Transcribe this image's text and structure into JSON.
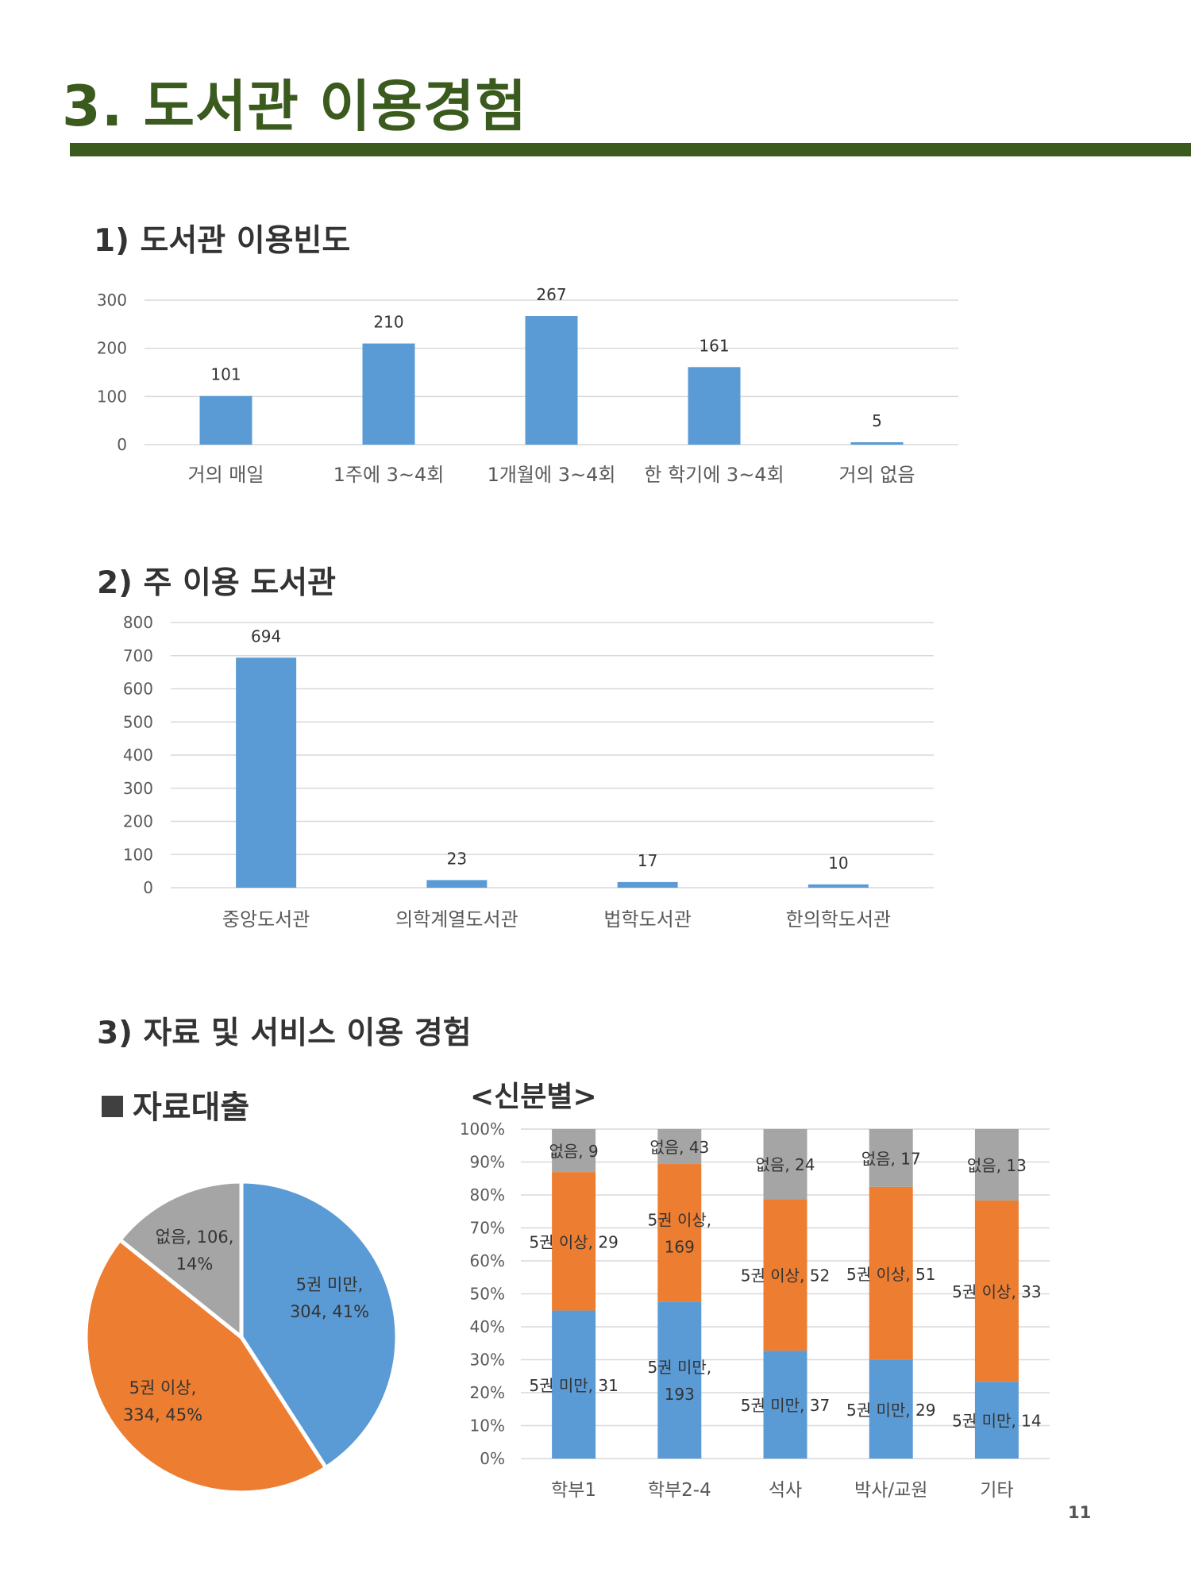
{
  "page": {
    "title": "3. 도서관 이용경험",
    "page_number": "11"
  },
  "sections": {
    "s1": "1) 도서관 이용빈도",
    "s2": "2) 주 이용 도서관",
    "s3": "3) 자료 및 서비스 이용 경험",
    "loan_heading": "자료대출",
    "by_status_heading": "<신분별>"
  },
  "colors": {
    "blue": "#5b9bd5",
    "orange": "#ed7d31",
    "gray": "#a5a5a5",
    "grid": "#d9d9d9",
    "axis_text": "#595959"
  },
  "chart_data": [
    {
      "id": "frequency",
      "type": "bar",
      "title": "1) 도서관 이용빈도",
      "categories": [
        "거의 매일",
        "1주에 3~4회",
        "1개월에 3~4회",
        "한 학기에 3~4회",
        "거의 없음"
      ],
      "values": [
        101,
        210,
        267,
        161,
        5
      ],
      "ylim": [
        0,
        300
      ],
      "yticks": [
        0,
        100,
        200,
        300
      ],
      "grid": true
    },
    {
      "id": "main_library",
      "type": "bar",
      "title": "2) 주 이용 도서관",
      "categories": [
        "중앙도서관",
        "의학계열도서관",
        "법학도서관",
        "한의학도서관"
      ],
      "values": [
        694,
        23,
        17,
        10
      ],
      "ylim": [
        0,
        800
      ],
      "yticks": [
        0,
        100,
        200,
        300,
        400,
        500,
        600,
        700,
        800
      ],
      "grid": true
    },
    {
      "id": "loan_pie",
      "type": "pie",
      "title": "자료대출",
      "slices": [
        {
          "name": "5권 미만",
          "value": 304,
          "percent": "41%",
          "label_line1": "5권 미만,",
          "label_line2": "304, 41%"
        },
        {
          "name": "5권 이상",
          "value": 334,
          "percent": "45%",
          "label_line1": "5권 이상,",
          "label_line2": "334, 45%"
        },
        {
          "name": "없음",
          "value": 106,
          "percent": "14%",
          "label_line1": "없음, 106,",
          "label_line2": "14%"
        }
      ]
    },
    {
      "id": "loan_by_status",
      "type": "bar",
      "stacked": "percent",
      "title": "<신분별>",
      "categories": [
        "학부1",
        "학부2-4",
        "석사",
        "박사/교원",
        "기타"
      ],
      "series": [
        {
          "name": "5권 미만",
          "values": [
            31,
            193,
            37,
            29,
            14
          ],
          "labels": [
            [
              "5권 미만, 31"
            ],
            [
              "5권 미만,",
              "193"
            ],
            [
              "5권 미만, 37"
            ],
            [
              "5권 미만, 29"
            ],
            [
              "5권 미만, 14"
            ]
          ]
        },
        {
          "name": "5권 이상",
          "values": [
            29,
            169,
            52,
            51,
            33
          ],
          "labels": [
            [
              "5권 이상, 29"
            ],
            [
              "5권 이상,",
              "169"
            ],
            [
              "5권 이상, 52"
            ],
            [
              "5권 이상, 51"
            ],
            [
              "5권 이상, 33"
            ]
          ]
        },
        {
          "name": "없음",
          "values": [
            9,
            43,
            24,
            17,
            13
          ],
          "labels": [
            [
              "없음, 9"
            ],
            [
              "없음, 43"
            ],
            [
              "없음, 24"
            ],
            [
              "없음, 17"
            ],
            [
              "없음, 13"
            ]
          ]
        }
      ],
      "ylim": [
        0,
        100
      ],
      "yticks": [
        "0%",
        "10%",
        "20%",
        "30%",
        "40%",
        "50%",
        "60%",
        "70%",
        "80%",
        "90%",
        "100%"
      ],
      "grid": true
    }
  ]
}
